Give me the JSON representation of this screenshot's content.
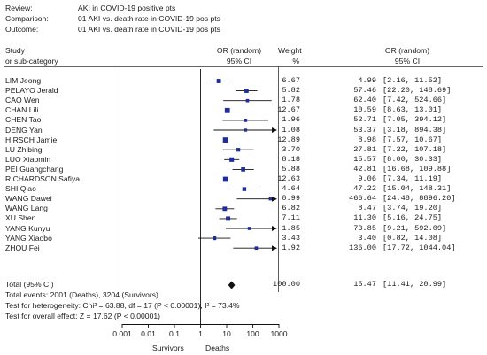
{
  "header": [
    {
      "key": "Review:",
      "value": "AKI in COVID-19 positive pts"
    },
    {
      "key": "Comparison:",
      "value": "01 AKI vs. death rate in COVID-19 pos pts"
    },
    {
      "key": "Outcome:",
      "value": "01 AKI vs. death rate in COVID-19 pos pts"
    }
  ],
  "columns": {
    "study_line1": "Study",
    "study_line2": "or sub-category",
    "or_line1": "OR (random)",
    "or_line2": "95% CI",
    "weight_line1": "Weight",
    "weight_line2": "%",
    "or2_line1": "OR (random)",
    "or2_line2": "95% CI"
  },
  "rows": [
    {
      "study": "LIM Jeong",
      "weight": "6.67",
      "or": "4.99",
      "ci": "[2.16, 11.52]"
    },
    {
      "study": "PELAYO Jerald",
      "weight": "5.82",
      "or": "57.46",
      "ci": "[22.20, 148.69]"
    },
    {
      "study": "CAO Wen",
      "weight": "1.78",
      "or": "62.40",
      "ci": "[7.42, 524.66]"
    },
    {
      "study": "CHAN Lili",
      "weight": "12.67",
      "or": "10.59",
      "ci": "[8.63, 13.01]"
    },
    {
      "study": "CHEN Tao",
      "weight": "1.96",
      "or": "52.71",
      "ci": "[7.05, 394.12]"
    },
    {
      "study": "DENG Yan",
      "weight": "1.08",
      "or": "53.37",
      "ci": "[3.18, 894.38]"
    },
    {
      "study": "HIRSCH Jamie",
      "weight": "12.89",
      "or": "8.98",
      "ci": "[7.57, 10.67]"
    },
    {
      "study": "LU Zhibing",
      "weight": "3.70",
      "or": "27.81",
      "ci": "[7.22, 107.18]"
    },
    {
      "study": "LUO Xiaomin",
      "weight": "8.18",
      "or": "15.57",
      "ci": "[8.00, 30.33]"
    },
    {
      "study": "PEI Guangchang",
      "weight": "5.88",
      "or": "42.81",
      "ci": "[16.68, 109.88]"
    },
    {
      "study": "RICHARDSON Safiya",
      "weight": "12.63",
      "or": "9.06",
      "ci": "[7.34, 11.19]"
    },
    {
      "study": "SHI Qiao",
      "weight": "4.64",
      "or": "47.22",
      "ci": "[15.04, 148.31]"
    },
    {
      "study": "WANG Dawei",
      "weight": "0.99",
      "or": "466.64",
      "ci": "[24.48, 8896.20]"
    },
    {
      "study": "WANG Lang",
      "weight": "6.82",
      "or": "8.47",
      "ci": "[3.74, 19.20]"
    },
    {
      "study": "XU Shen",
      "weight": "7.11",
      "or": "11.30",
      "ci": "[5.16, 24.75]"
    },
    {
      "study": "YANG Kunyu",
      "weight": "1.85",
      "or": "73.85",
      "ci": "[9.21, 592.09]"
    },
    {
      "study": "YANG Xiaobo",
      "weight": "3.43",
      "or": "3.40",
      "ci": "[0.82, 14.08]"
    },
    {
      "study": "ZHOU Fei",
      "weight": "1.92",
      "or": "136.00",
      "ci": "[17.72, 1044.04]"
    }
  ],
  "total": {
    "label": "Total (95% CI)",
    "weight": "100.00",
    "or": "15.47",
    "ci": "[11.41, 20.99]"
  },
  "footer": {
    "events": "Total events: 2001 (Deaths), 3204 (Survivors)",
    "heterogeneity": "Test for heterogeneity: Chi² = 63.88, df = 17 (P < 0.00001), I² = 73.4%",
    "overall": "Test for overall effect: Z = 17.62 (P < 0.00001)"
  },
  "axis": {
    "tick_labels": [
      "0.001",
      "0.01",
      "0.1",
      "1",
      "10",
      "100",
      "1000"
    ],
    "left_label": "Survivors",
    "right_label": "Deaths"
  },
  "colors": {
    "marker": "#1f2d9c",
    "line": "#111111",
    "text": "#1a1a1a"
  },
  "chart_data": {
    "type": "forest",
    "x_scale": "log10",
    "xlim": [
      0.001,
      1000
    ],
    "reference_line": 1,
    "series": [
      {
        "study": "LIM Jeong",
        "or": 4.99,
        "ci_low": 2.16,
        "ci_high": 11.52,
        "weight": 6.67
      },
      {
        "study": "PELAYO Jerald",
        "or": 57.46,
        "ci_low": 22.2,
        "ci_high": 148.69,
        "weight": 5.82
      },
      {
        "study": "CAO Wen",
        "or": 62.4,
        "ci_low": 7.42,
        "ci_high": 524.66,
        "weight": 1.78
      },
      {
        "study": "CHAN Lili",
        "or": 10.59,
        "ci_low": 8.63,
        "ci_high": 13.01,
        "weight": 12.67
      },
      {
        "study": "CHEN Tao",
        "or": 52.71,
        "ci_low": 7.05,
        "ci_high": 394.12,
        "weight": 1.96
      },
      {
        "study": "DENG Yan",
        "or": 53.37,
        "ci_low": 3.18,
        "ci_high": 894.38,
        "weight": 1.08
      },
      {
        "study": "HIRSCH Jamie",
        "or": 8.98,
        "ci_low": 7.57,
        "ci_high": 10.67,
        "weight": 12.89
      },
      {
        "study": "LU Zhibing",
        "or": 27.81,
        "ci_low": 7.22,
        "ci_high": 107.18,
        "weight": 3.7
      },
      {
        "study": "LUO Xiaomin",
        "or": 15.57,
        "ci_low": 8.0,
        "ci_high": 30.33,
        "weight": 8.18
      },
      {
        "study": "PEI Guangchang",
        "or": 42.81,
        "ci_low": 16.68,
        "ci_high": 109.88,
        "weight": 5.88
      },
      {
        "study": "RICHARDSON Safiya",
        "or": 9.06,
        "ci_low": 7.34,
        "ci_high": 11.19,
        "weight": 12.63
      },
      {
        "study": "SHI Qiao",
        "or": 47.22,
        "ci_low": 15.04,
        "ci_high": 148.31,
        "weight": 4.64
      },
      {
        "study": "WANG Dawei",
        "or": 466.64,
        "ci_low": 24.48,
        "ci_high": 8896.2,
        "weight": 0.99
      },
      {
        "study": "WANG Lang",
        "or": 8.47,
        "ci_low": 3.74,
        "ci_high": 19.2,
        "weight": 6.82
      },
      {
        "study": "XU Shen",
        "or": 11.3,
        "ci_low": 5.16,
        "ci_high": 24.75,
        "weight": 7.11
      },
      {
        "study": "YANG Kunyu",
        "or": 73.85,
        "ci_low": 9.21,
        "ci_high": 592.09,
        "weight": 1.85
      },
      {
        "study": "YANG Xiaobo",
        "or": 3.4,
        "ci_low": 0.82,
        "ci_high": 14.08,
        "weight": 3.43
      },
      {
        "study": "ZHOU Fei",
        "or": 136.0,
        "ci_low": 17.72,
        "ci_high": 1044.04,
        "weight": 1.92
      }
    ],
    "pooled": {
      "or": 15.47,
      "ci_low": 11.41,
      "ci_high": 20.99,
      "weight": 100.0
    }
  }
}
